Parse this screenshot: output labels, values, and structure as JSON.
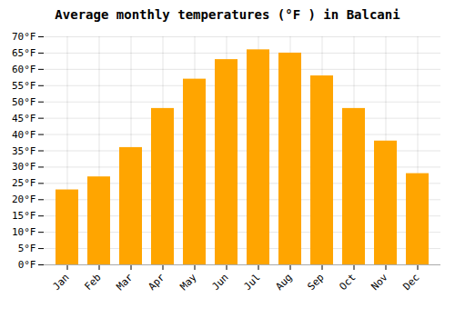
{
  "chart_data": {
    "type": "bar",
    "title": "Average monthly temperatures (°F ) in Balcani",
    "categories": [
      "Jan",
      "Feb",
      "Mar",
      "Apr",
      "May",
      "Jun",
      "Jul",
      "Aug",
      "Sep",
      "Oct",
      "Nov",
      "Dec"
    ],
    "values": [
      23,
      27,
      36,
      48,
      57,
      63,
      66,
      65,
      58,
      48,
      38,
      28
    ],
    "color": "#FFA500",
    "ylim": [
      0,
      70
    ],
    "yticks": [
      {
        "value": 0,
        "label": "0°F"
      },
      {
        "value": 5,
        "label": "5°F"
      },
      {
        "value": 10,
        "label": "10°F"
      },
      {
        "value": 15,
        "label": "15°F"
      },
      {
        "value": 20,
        "label": "20°F"
      },
      {
        "value": 25,
        "label": "25°F"
      },
      {
        "value": 30,
        "label": "30°F"
      },
      {
        "value": 35,
        "label": "35°F"
      },
      {
        "value": 40,
        "label": "40°F"
      },
      {
        "value": 45,
        "label": "45°F"
      },
      {
        "value": 50,
        "label": "50°F"
      },
      {
        "value": 55,
        "label": "55°F"
      },
      {
        "value": 60,
        "label": "60°F"
      },
      {
        "value": 65,
        "label": "65°F"
      },
      {
        "value": 70,
        "label": "70°F"
      }
    ],
    "grid": true
  }
}
